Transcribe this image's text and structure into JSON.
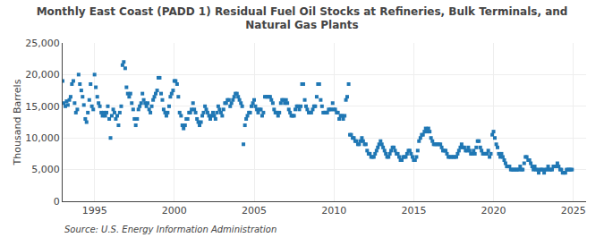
{
  "chart_data": {
    "type": "scatter",
    "title": "Monthly East Coast (PADD 1) Residual Fuel Oil Stocks at Refineries, Bulk Terminals, and\nNatural Gas Plants",
    "ylabel": "Thousand Barrels",
    "annotations": [
      "Source: U.S. Energy Information Administration"
    ],
    "marker": "square",
    "grid": true,
    "xlim": [
      1993.0,
      2025.8
    ],
    "xticks": [
      1995,
      2000,
      2005,
      2010,
      2015,
      2020,
      2025
    ],
    "ylim": [
      0,
      25000
    ],
    "yticks": [
      0,
      {
        "value": 5000,
        "label": "5,000"
      },
      {
        "value": 10000,
        "label": "10,000"
      },
      {
        "value": 15000,
        "label": "15,000"
      },
      {
        "value": 20000,
        "label": "20,000"
      },
      {
        "value": 25000,
        "label": "25,000"
      }
    ],
    "x": [
      1993.0,
      1993.08,
      1993.17,
      1993.25,
      1993.33,
      1993.42,
      1993.5,
      1993.58,
      1993.67,
      1993.75,
      1993.83,
      1993.92,
      1994.0,
      1994.08,
      1994.17,
      1994.25,
      1994.33,
      1994.42,
      1994.5,
      1994.58,
      1994.67,
      1994.75,
      1994.83,
      1994.92,
      1995.0,
      1995.08,
      1995.17,
      1995.25,
      1995.33,
      1995.42,
      1995.5,
      1995.58,
      1995.67,
      1995.75,
      1995.83,
      1995.92,
      1996.0,
      1996.08,
      1996.17,
      1996.25,
      1996.33,
      1996.42,
      1996.5,
      1996.58,
      1996.67,
      1996.75,
      1996.83,
      1996.92,
      1997.0,
      1997.08,
      1997.17,
      1997.25,
      1997.33,
      1997.42,
      1997.5,
      1997.58,
      1997.67,
      1997.75,
      1997.83,
      1997.92,
      1998.0,
      1998.08,
      1998.17,
      1998.25,
      1998.33,
      1998.42,
      1998.5,
      1998.58,
      1998.67,
      1998.75,
      1998.83,
      1998.92,
      1999.0,
      1999.08,
      1999.17,
      1999.25,
      1999.33,
      1999.42,
      1999.5,
      1999.58,
      1999.67,
      1999.75,
      1999.83,
      1999.92,
      2000.0,
      2000.08,
      2000.17,
      2000.25,
      2000.33,
      2000.42,
      2000.5,
      2000.58,
      2000.67,
      2000.75,
      2000.83,
      2000.92,
      2001.0,
      2001.08,
      2001.17,
      2001.25,
      2001.33,
      2001.42,
      2001.5,
      2001.58,
      2001.67,
      2001.75,
      2001.83,
      2001.92,
      2002.0,
      2002.08,
      2002.17,
      2002.25,
      2002.33,
      2002.42,
      2002.5,
      2002.58,
      2002.67,
      2002.75,
      2002.83,
      2002.92,
      2003.0,
      2003.08,
      2003.17,
      2003.25,
      2003.33,
      2003.42,
      2003.5,
      2003.58,
      2003.67,
      2003.75,
      2003.83,
      2003.92,
      2004.0,
      2004.08,
      2004.17,
      2004.25,
      2004.33,
      2004.42,
      2004.5,
      2004.58,
      2004.67,
      2004.75,
      2004.83,
      2004.92,
      2005.0,
      2005.08,
      2005.17,
      2005.25,
      2005.33,
      2005.42,
      2005.5,
      2005.58,
      2005.67,
      2005.75,
      2005.83,
      2005.92,
      2006.0,
      2006.08,
      2006.17,
      2006.25,
      2006.33,
      2006.42,
      2006.5,
      2006.58,
      2006.67,
      2006.75,
      2006.83,
      2006.92,
      2007.0,
      2007.08,
      2007.17,
      2007.25,
      2007.33,
      2007.42,
      2007.5,
      2007.58,
      2007.67,
      2007.75,
      2007.83,
      2007.92,
      2008.0,
      2008.08,
      2008.17,
      2008.25,
      2008.33,
      2008.42,
      2008.5,
      2008.58,
      2008.67,
      2008.75,
      2008.83,
      2008.92,
      2009.0,
      2009.08,
      2009.17,
      2009.25,
      2009.33,
      2009.42,
      2009.5,
      2009.58,
      2009.67,
      2009.75,
      2009.83,
      2009.92,
      2010.0,
      2010.08,
      2010.17,
      2010.25,
      2010.33,
      2010.42,
      2010.5,
      2010.58,
      2010.67,
      2010.75,
      2010.83,
      2010.92,
      2011.0,
      2011.08,
      2011.17,
      2011.25,
      2011.33,
      2011.42,
      2011.5,
      2011.58,
      2011.67,
      2011.75,
      2011.83,
      2011.92,
      2012.0,
      2012.08,
      2012.17,
      2012.25,
      2012.33,
      2012.42,
      2012.5,
      2012.58,
      2012.67,
      2012.75,
      2012.83,
      2012.92,
      2013.0,
      2013.08,
      2013.17,
      2013.25,
      2013.33,
      2013.42,
      2013.5,
      2013.58,
      2013.67,
      2013.75,
      2013.83,
      2013.92,
      2014.0,
      2014.08,
      2014.17,
      2014.25,
      2014.33,
      2014.42,
      2014.5,
      2014.58,
      2014.67,
      2014.75,
      2014.83,
      2014.92,
      2015.0,
      2015.08,
      2015.17,
      2015.25,
      2015.33,
      2015.42,
      2015.5,
      2015.58,
      2015.67,
      2015.75,
      2015.83,
      2015.92,
      2016.0,
      2016.08,
      2016.17,
      2016.25,
      2016.33,
      2016.42,
      2016.5,
      2016.58,
      2016.67,
      2016.75,
      2016.83,
      2016.92,
      2017.0,
      2017.08,
      2017.17,
      2017.25,
      2017.33,
      2017.42,
      2017.5,
      2017.58,
      2017.67,
      2017.75,
      2017.83,
      2017.92,
      2018.0,
      2018.08,
      2018.17,
      2018.25,
      2018.33,
      2018.42,
      2018.5,
      2018.58,
      2018.67,
      2018.75,
      2018.83,
      2018.92,
      2019.0,
      2019.08,
      2019.17,
      2019.25,
      2019.33,
      2019.42,
      2019.5,
      2019.58,
      2019.67,
      2019.75,
      2019.83,
      2019.92,
      2020.0,
      2020.08,
      2020.17,
      2020.25,
      2020.33,
      2020.42,
      2020.5,
      2020.58,
      2020.67,
      2020.75,
      2020.83,
      2020.92,
      2021.0,
      2021.08,
      2021.17,
      2021.25,
      2021.33,
      2021.42,
      2021.5,
      2021.58,
      2021.67,
      2021.75,
      2021.83,
      2021.92,
      2022.0,
      2022.08,
      2022.17,
      2022.25,
      2022.33,
      2022.42,
      2022.5,
      2022.58,
      2022.67,
      2022.75,
      2022.83,
      2022.92,
      2023.0,
      2023.08,
      2023.17,
      2023.25,
      2023.33,
      2023.42,
      2023.5,
      2023.58,
      2023.67,
      2023.75,
      2023.83,
      2023.92,
      2024.0,
      2024.08,
      2024.17,
      2024.25,
      2024.33,
      2024.42,
      2024.5,
      2024.58,
      2024.67,
      2024.75,
      2024.83,
      2024.92
    ],
    "values": [
      19000,
      15500,
      15000,
      15800,
      15200,
      16000,
      16500,
      18500,
      19000,
      15500,
      14000,
      14500,
      20000,
      18500,
      17500,
      16500,
      15200,
      13000,
      12500,
      14000,
      16000,
      18500,
      15000,
      14500,
      20000,
      18000,
      16500,
      15500,
      15000,
      14000,
      13500,
      14000,
      13500,
      14000,
      15000,
      13000,
      10000,
      13500,
      14500,
      14000,
      13000,
      13500,
      12000,
      14000,
      15000,
      21500,
      22000,
      21000,
      18000,
      17000,
      16500,
      17000,
      15500,
      14500,
      13000,
      12000,
      13000,
      14500,
      15000,
      15500,
      17000,
      16000,
      15500,
      15000,
      15500,
      14500,
      14000,
      15000,
      16000,
      16500,
      17000,
      17500,
      19500,
      19500,
      17000,
      16000,
      14500,
      14000,
      13500,
      14000,
      15000,
      16500,
      17000,
      17500,
      19000,
      19000,
      18500,
      16500,
      14000,
      13500,
      12000,
      11500,
      12000,
      13000,
      13000,
      14000,
      14000,
      14500,
      15500,
      14500,
      14000,
      13000,
      12500,
      12000,
      12500,
      13500,
      14000,
      15000,
      14500,
      14000,
      13500,
      13000,
      13500,
      14000,
      13500,
      13000,
      14000,
      15000,
      14500,
      14000,
      13500,
      14500,
      15500,
      15500,
      16000,
      16000,
      15000,
      15500,
      16000,
      16500,
      17000,
      17000,
      16500,
      16000,
      15500,
      15000,
      9000,
      12000,
      13000,
      13500,
      14000,
      14000,
      15000,
      15500,
      16000,
      15000,
      14500,
      14000,
      14500,
      14500,
      13500,
      14000,
      16500,
      16500,
      16500,
      16500,
      16500,
      16000,
      15500,
      14500,
      14000,
      14000,
      13500,
      14000,
      15500,
      16000,
      16000,
      15500,
      16000,
      15500,
      14500,
      14000,
      13500,
      13500,
      13500,
      14500,
      15000,
      15000,
      14500,
      15000,
      18500,
      18500,
      16000,
      15000,
      14500,
      14000,
      14000,
      14000,
      14500,
      15000,
      15000,
      16500,
      18500,
      18500,
      16000,
      15000,
      14000,
      14000,
      14000,
      14000,
      14500,
      14500,
      14500,
      15500,
      14500,
      14500,
      14000,
      14000,
      13000,
      13500,
      13500,
      13000,
      13500,
      16000,
      16500,
      18500,
      10500,
      10500,
      10000,
      10000,
      9500,
      9500,
      9000,
      9000,
      9500,
      10000,
      9500,
      9000,
      9000,
      8000,
      7500,
      7500,
      7000,
      7000,
      7000,
      7500,
      8000,
      8500,
      9000,
      9500,
      9000,
      8500,
      8000,
      7500,
      7000,
      7000,
      7500,
      8000,
      8500,
      8500,
      8000,
      7500,
      7500,
      7000,
      6500,
      6500,
      7000,
      7000,
      7000,
      7500,
      8000,
      8000,
      7500,
      7000,
      6500,
      6500,
      7000,
      8000,
      9500,
      10000,
      10500,
      10500,
      11000,
      11500,
      11000,
      11500,
      11000,
      10000,
      9500,
      9000,
      9000,
      9000,
      9000,
      9000,
      9000,
      8500,
      8000,
      8000,
      8000,
      7500,
      7000,
      7000,
      7000,
      7000,
      7000,
      7000,
      7000,
      7500,
      8000,
      8500,
      9000,
      8500,
      8500,
      8000,
      8000,
      8500,
      8000,
      7500,
      7500,
      8000,
      7500,
      8500,
      9500,
      9500,
      8500,
      8000,
      7500,
      7500,
      7500,
      7500,
      8000,
      7000,
      7500,
      10500,
      11000,
      10000,
      9000,
      8500,
      7500,
      7000,
      7500,
      7000,
      6500,
      6000,
      5500,
      5500,
      5500,
      5000,
      5000,
      5000,
      5000,
      5000,
      5000,
      5000,
      5500,
      5000,
      5000,
      6000,
      7000,
      7000,
      6500,
      6500,
      6000,
      5500,
      5000,
      5500,
      5000,
      5000,
      4500,
      5000,
      5000,
      5000,
      4500,
      5000,
      5000,
      5500,
      5000,
      5000,
      5000,
      5500,
      5500,
      5500,
      6000,
      5500,
      5000,
      5000,
      4500,
      4500,
      4500,
      5000,
      5000,
      5000,
      5000,
      5000
    ]
  }
}
